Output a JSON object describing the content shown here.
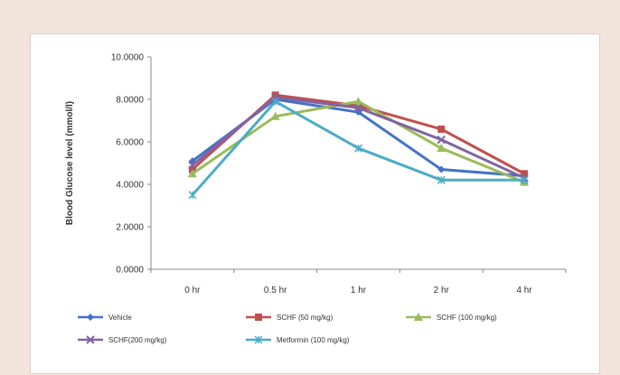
{
  "chart_data": {
    "type": "line",
    "title": "",
    "xlabel": "",
    "ylabel": "Blood Glucose level (mmol/l)",
    "categories": [
      "0 hr",
      "0.5 hr",
      "1 hr",
      "2 hr",
      "4 hr"
    ],
    "ylim": [
      0,
      10
    ],
    "yticks": [
      0,
      2,
      4,
      6,
      8,
      10
    ],
    "ytick_labels": [
      "0.0000",
      "2.0000",
      "4.0000",
      "6.0000",
      "8.0000",
      "10.0000"
    ],
    "grid": false,
    "legend_position": "bottom",
    "series": [
      {
        "name": "Vehicle",
        "values": [
          5.1,
          8.0,
          7.4,
          4.7,
          4.4
        ],
        "color": "#4472c4",
        "marker": "diamond"
      },
      {
        "name": "SCHF (50 mg/kg)",
        "values": [
          4.7,
          8.2,
          7.7,
          6.6,
          4.5
        ],
        "color": "#c0504d",
        "marker": "square"
      },
      {
        "name": "SCHF (100 mg/kg)",
        "values": [
          4.5,
          7.2,
          7.9,
          5.7,
          4.1
        ],
        "color": "#9bbb59",
        "marker": "triangle"
      },
      {
        "name": "SCHF(200 mg/kg)",
        "values": [
          4.9,
          8.1,
          7.6,
          6.1,
          4.3
        ],
        "color": "#8064a2",
        "marker": "x"
      },
      {
        "name": "Metformin (100 mg/kg)",
        "values": [
          3.5,
          7.9,
          5.7,
          4.2,
          4.2
        ],
        "color": "#4bacc6",
        "marker": "star"
      }
    ]
  }
}
